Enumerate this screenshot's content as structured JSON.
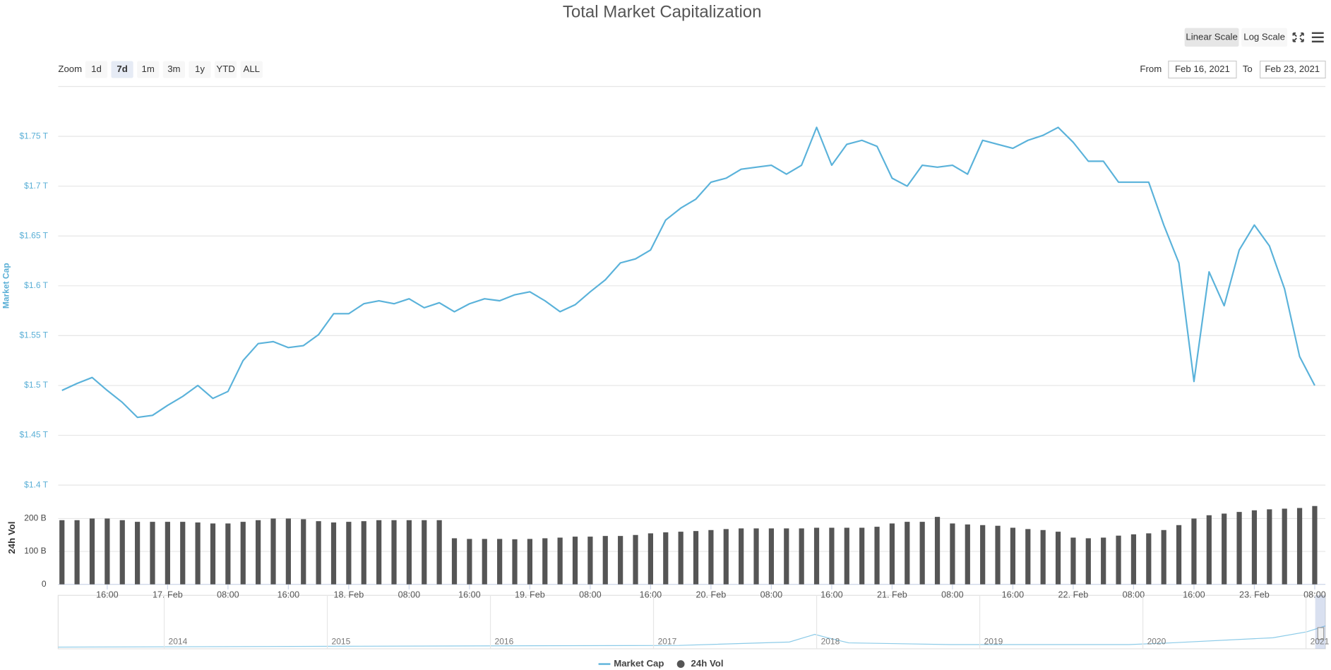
{
  "chart_data": {
    "type": "line",
    "title": "Total Market Capitalization",
    "scale_buttons": [
      "Linear Scale",
      "Log Scale"
    ],
    "log_scale": false,
    "zoom": {
      "label": "Zoom",
      "buttons": [
        "1d",
        "7d",
        "1m",
        "3m",
        "1y",
        "YTD",
        "ALL"
      ],
      "selected": 1
    },
    "range": {
      "from_label": "From",
      "from": "Feb 16, 2021",
      "to_label": "To",
      "to": "Feb 23, 2021"
    },
    "y_label": "Market Cap",
    "y2_label": "24h Vol",
    "grid": true,
    "x": [
      "2021-02-16T10:00",
      "2021-02-16T12:00",
      "2021-02-16T14:00",
      "2021-02-16T16:00",
      "2021-02-16T18:00",
      "2021-02-16T20:00",
      "2021-02-16T22:00",
      "2021-02-17T00:00",
      "2021-02-17T02:00",
      "2021-02-17T04:00",
      "2021-02-17T06:00",
      "2021-02-17T08:00",
      "2021-02-17T10:00",
      "2021-02-17T12:00",
      "2021-02-17T14:00",
      "2021-02-17T16:00",
      "2021-02-17T18:00",
      "2021-02-17T20:00",
      "2021-02-17T22:00",
      "2021-02-18T00:00",
      "2021-02-18T02:00",
      "2021-02-18T04:00",
      "2021-02-18T06:00",
      "2021-02-18T08:00",
      "2021-02-18T10:00",
      "2021-02-18T12:00",
      "2021-02-18T14:00",
      "2021-02-18T16:00",
      "2021-02-18T18:00",
      "2021-02-18T20:00",
      "2021-02-18T22:00",
      "2021-02-19T00:00",
      "2021-02-19T02:00",
      "2021-02-19T04:00",
      "2021-02-19T06:00",
      "2021-02-19T08:00",
      "2021-02-19T10:00",
      "2021-02-19T12:00",
      "2021-02-19T14:00",
      "2021-02-19T16:00",
      "2021-02-19T18:00",
      "2021-02-19T20:00",
      "2021-02-19T22:00",
      "2021-02-20T00:00",
      "2021-02-20T02:00",
      "2021-02-20T04:00",
      "2021-02-20T06:00",
      "2021-02-20T08:00",
      "2021-02-20T10:00",
      "2021-02-20T12:00",
      "2021-02-20T14:00",
      "2021-02-20T16:00",
      "2021-02-20T18:00",
      "2021-02-20T20:00",
      "2021-02-20T22:00",
      "2021-02-21T00:00",
      "2021-02-21T02:00",
      "2021-02-21T04:00",
      "2021-02-21T06:00",
      "2021-02-21T08:00",
      "2021-02-21T10:00",
      "2021-02-21T12:00",
      "2021-02-21T14:00",
      "2021-02-21T16:00",
      "2021-02-21T18:00",
      "2021-02-21T20:00",
      "2021-02-21T22:00",
      "2021-02-22T00:00",
      "2021-02-22T02:00",
      "2021-02-22T04:00",
      "2021-02-22T06:00",
      "2021-02-22T08:00",
      "2021-02-22T10:00",
      "2021-02-22T12:00",
      "2021-02-22T14:00",
      "2021-02-22T16:00",
      "2021-02-22T18:00",
      "2021-02-22T20:00",
      "2021-02-22T22:00",
      "2021-02-23T00:00",
      "2021-02-23T02:00",
      "2021-02-23T04:00",
      "2021-02-23T06:00",
      "2021-02-23T08:00"
    ],
    "xlim": [
      "2021-02-16T09:30",
      "2021-02-23T09:25"
    ],
    "xticks": [
      {
        "value": "2021-02-16T16:00",
        "label": "16:00"
      },
      {
        "value": "2021-02-17T00:00",
        "label": "17. Feb"
      },
      {
        "value": "2021-02-17T08:00",
        "label": "08:00"
      },
      {
        "value": "2021-02-17T16:00",
        "label": "16:00"
      },
      {
        "value": "2021-02-18T00:00",
        "label": "18. Feb"
      },
      {
        "value": "2021-02-18T08:00",
        "label": "08:00"
      },
      {
        "value": "2021-02-18T16:00",
        "label": "16:00"
      },
      {
        "value": "2021-02-19T00:00",
        "label": "19. Feb"
      },
      {
        "value": "2021-02-19T08:00",
        "label": "08:00"
      },
      {
        "value": "2021-02-19T16:00",
        "label": "16:00"
      },
      {
        "value": "2021-02-20T00:00",
        "label": "20. Feb"
      },
      {
        "value": "2021-02-20T08:00",
        "label": "08:00"
      },
      {
        "value": "2021-02-20T16:00",
        "label": "16:00"
      },
      {
        "value": "2021-02-21T00:00",
        "label": "21. Feb"
      },
      {
        "value": "2021-02-21T08:00",
        "label": "08:00"
      },
      {
        "value": "2021-02-21T16:00",
        "label": "16:00"
      },
      {
        "value": "2021-02-22T00:00",
        "label": "22. Feb"
      },
      {
        "value": "2021-02-22T08:00",
        "label": "08:00"
      },
      {
        "value": "2021-02-22T16:00",
        "label": "16:00"
      },
      {
        "value": "2021-02-23T00:00",
        "label": "23. Feb"
      },
      {
        "value": "2021-02-23T08:00",
        "label": "08:00"
      }
    ],
    "ylim": [
      1.4,
      1.8
    ],
    "yticks": [
      {
        "value": 1.4,
        "label": "$1.4 T"
      },
      {
        "value": 1.45,
        "label": "$1.45 T"
      },
      {
        "value": 1.5,
        "label": "$1.5 T"
      },
      {
        "value": 1.55,
        "label": "$1.55 T"
      },
      {
        "value": 1.6,
        "label": "$1.6 T"
      },
      {
        "value": 1.65,
        "label": "$1.65 T"
      },
      {
        "value": 1.7,
        "label": "$1.7 T"
      },
      {
        "value": 1.75,
        "label": "$1.75 T"
      }
    ],
    "y2lim": [
      0,
      250
    ],
    "y2ticks": [
      0,
      {
        "value": 100,
        "label": "100 B"
      },
      {
        "value": 200,
        "label": "200 B"
      }
    ],
    "series": [
      {
        "name": "Market Cap",
        "color": "#5ab2da",
        "values": [
          1.495,
          1.502,
          1.508,
          1.495,
          1.483,
          1.468,
          1.47,
          1.48,
          1.489,
          1.5,
          1.487,
          1.494,
          1.525,
          1.542,
          1.544,
          1.538,
          1.54,
          1.551,
          1.572,
          1.572,
          1.582,
          1.585,
          1.582,
          1.587,
          1.578,
          1.583,
          1.574,
          1.582,
          1.587,
          1.585,
          1.591,
          1.594,
          1.585,
          1.574,
          1.581,
          1.594,
          1.606,
          1.623,
          1.627,
          1.636,
          1.666,
          1.678,
          1.687,
          1.704,
          1.708,
          1.717,
          1.719,
          1.721,
          1.712,
          1.721,
          1.759,
          1.721,
          1.742,
          1.746,
          1.74,
          1.708,
          1.7,
          1.721,
          1.719,
          1.721,
          1.712,
          1.746,
          1.742,
          1.738,
          1.746,
          1.751,
          1.759,
          1.744,
          1.725,
          1.725,
          1.704,
          1.704,
          1.704,
          1.661,
          1.623,
          1.504,
          1.614,
          1.58,
          1.636,
          1.661,
          1.64,
          1.597,
          1.529,
          1.5
        ]
      },
      {
        "name": "24h Vol",
        "color": "#555555",
        "axis": "y2",
        "values": [
          195,
          195,
          200,
          200,
          195,
          190,
          190,
          190,
          190,
          188,
          185,
          185,
          190,
          195,
          200,
          200,
          198,
          192,
          188,
          190,
          192,
          195,
          195,
          195,
          195,
          195,
          140,
          138,
          138,
          138,
          137,
          138,
          140,
          142,
          145,
          145,
          147,
          147,
          150,
          155,
          158,
          160,
          162,
          165,
          168,
          170,
          170,
          170,
          170,
          170,
          172,
          172,
          172,
          172,
          175,
          185,
          190,
          190,
          205,
          185,
          182,
          180,
          178,
          172,
          168,
          165,
          160,
          142,
          140,
          142,
          148,
          152,
          155,
          165,
          180,
          200,
          210,
          215,
          220,
          225,
          228,
          230,
          232,
          238
        ]
      }
    ],
    "navigator_labels": [
      "2014",
      "2015",
      "2016",
      "2017",
      "2018",
      "2019",
      "2020",
      "2021"
    ]
  }
}
